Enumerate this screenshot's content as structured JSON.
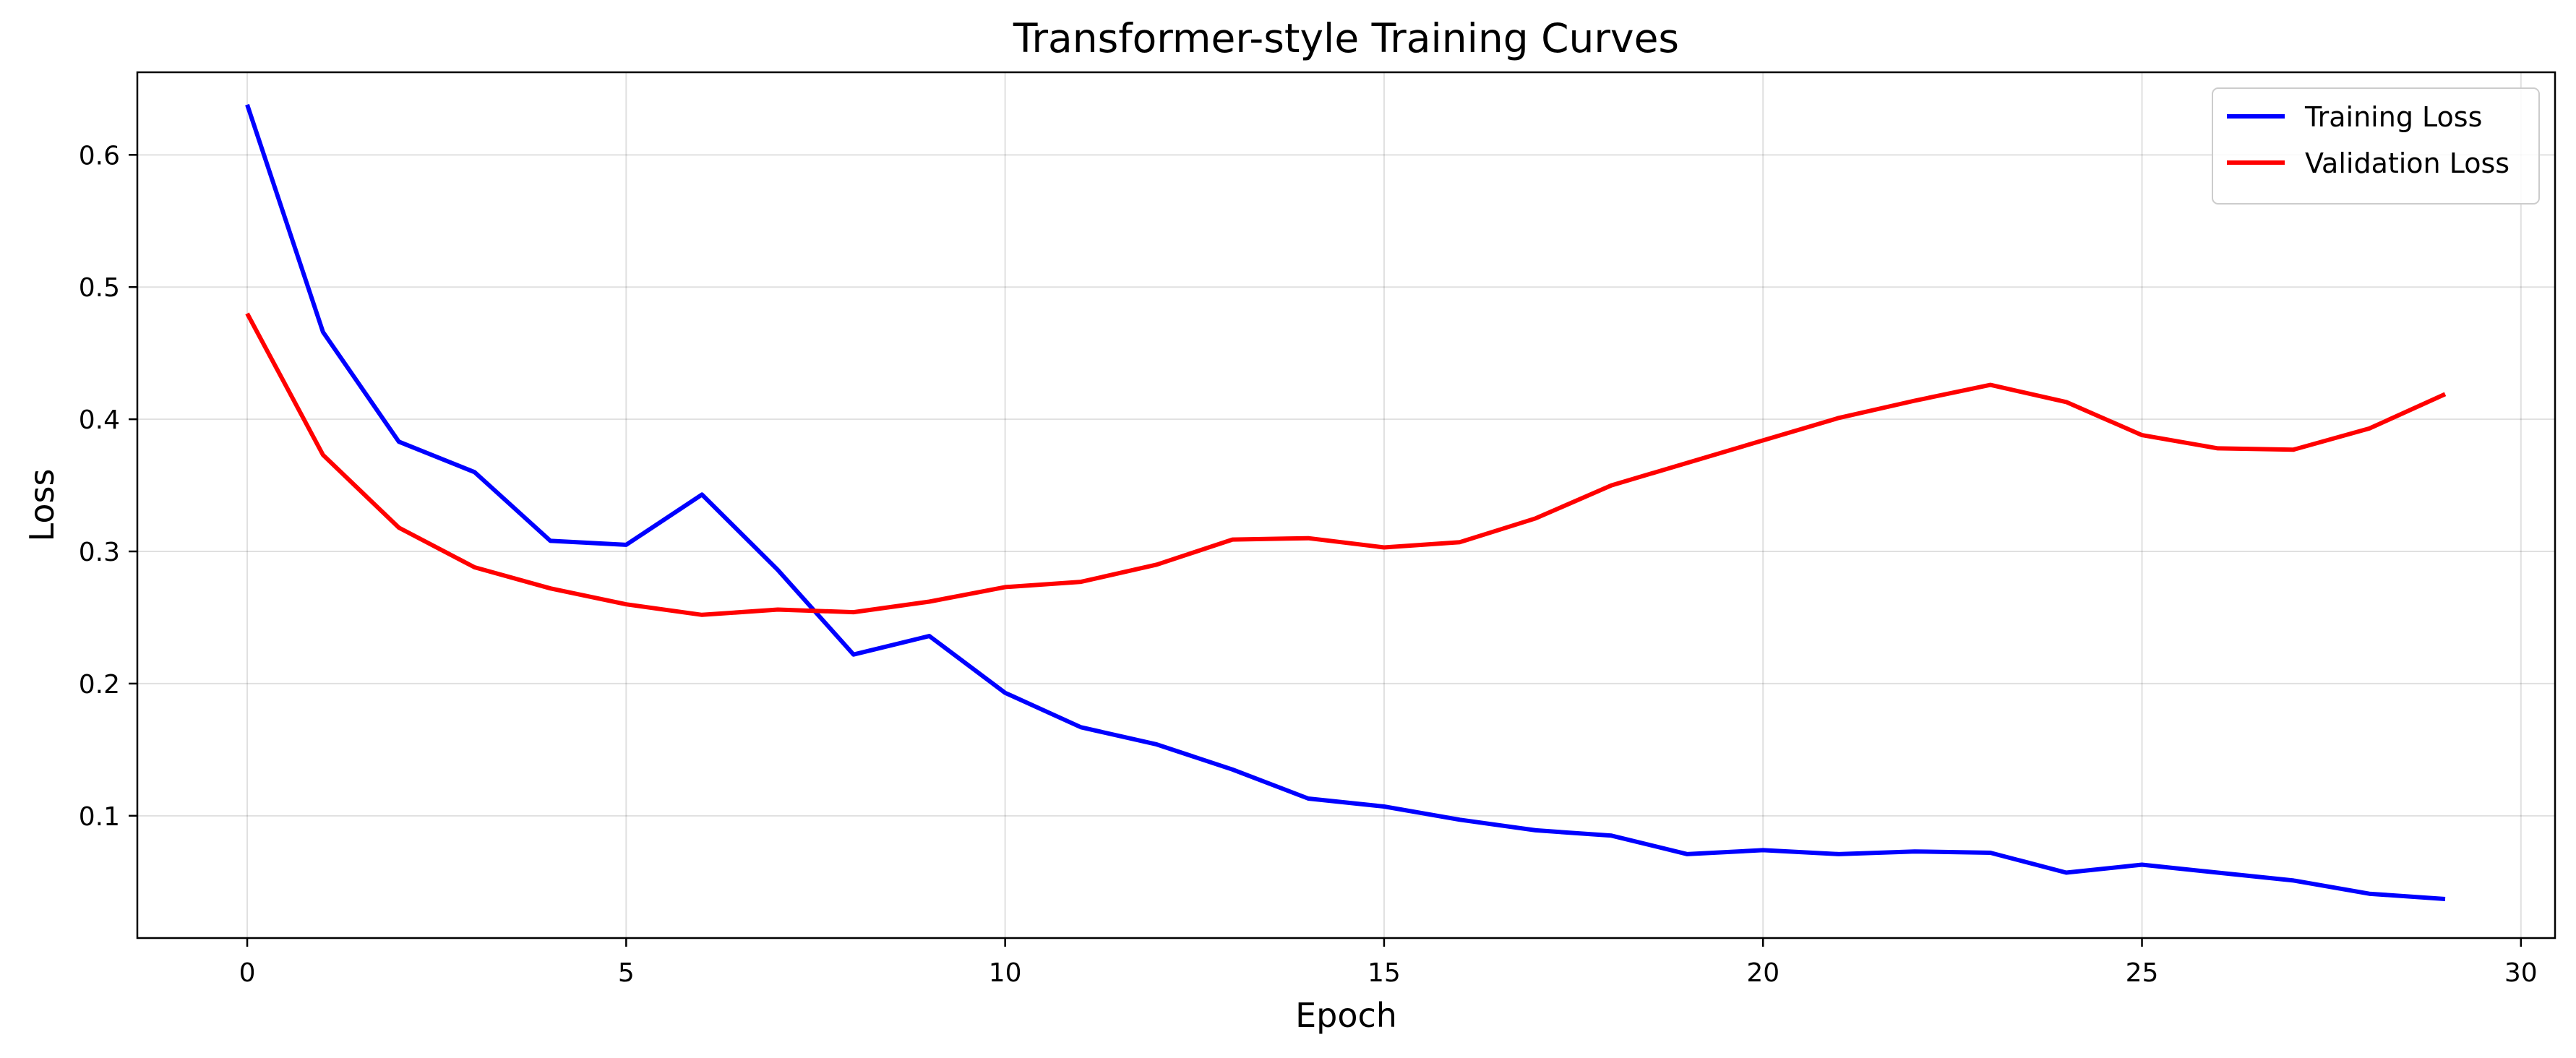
{
  "chart_data": {
    "type": "line",
    "title": "Transformer-style Training Curves",
    "xlabel": "Epoch",
    "ylabel": "Loss",
    "xlim": [
      -1.45,
      30.45
    ],
    "ylim": [
      0.0075,
      0.6625
    ],
    "x_ticks": [
      0,
      5,
      10,
      15,
      20,
      25,
      30
    ],
    "y_ticks": [
      0.1,
      0.2,
      0.3,
      0.4,
      0.5,
      0.6
    ],
    "x_tick_labels": [
      "0",
      "5",
      "10",
      "15",
      "20",
      "25",
      "30"
    ],
    "y_tick_labels": [
      "0.1",
      "0.2",
      "0.3",
      "0.4",
      "0.5",
      "0.6"
    ],
    "grid": true,
    "legend_position": "top-right",
    "x": [
      0,
      1,
      2,
      3,
      4,
      5,
      6,
      7,
      8,
      9,
      10,
      11,
      12,
      13,
      14,
      15,
      16,
      17,
      18,
      19,
      20,
      21,
      22,
      23,
      24,
      25,
      26,
      27,
      28,
      29
    ],
    "series": [
      {
        "name": "Training Loss",
        "color": "#0000ff",
        "values": [
          0.638,
          0.466,
          0.383,
          0.36,
          0.308,
          0.305,
          0.343,
          0.286,
          0.222,
          0.236,
          0.193,
          0.167,
          0.154,
          0.135,
          0.113,
          0.107,
          0.097,
          0.089,
          0.085,
          0.071,
          0.074,
          0.071,
          0.073,
          0.072,
          0.057,
          0.063,
          0.057,
          0.051,
          0.041,
          0.037
        ]
      },
      {
        "name": "Validation Loss",
        "color": "#ff0000",
        "values": [
          0.48,
          0.373,
          0.318,
          0.288,
          0.272,
          0.26,
          0.252,
          0.256,
          0.254,
          0.262,
          0.273,
          0.277,
          0.29,
          0.309,
          0.31,
          0.303,
          0.307,
          0.325,
          0.35,
          0.367,
          0.384,
          0.401,
          0.414,
          0.426,
          0.413,
          0.388,
          0.378,
          0.377,
          0.393,
          0.419
        ]
      }
    ]
  }
}
